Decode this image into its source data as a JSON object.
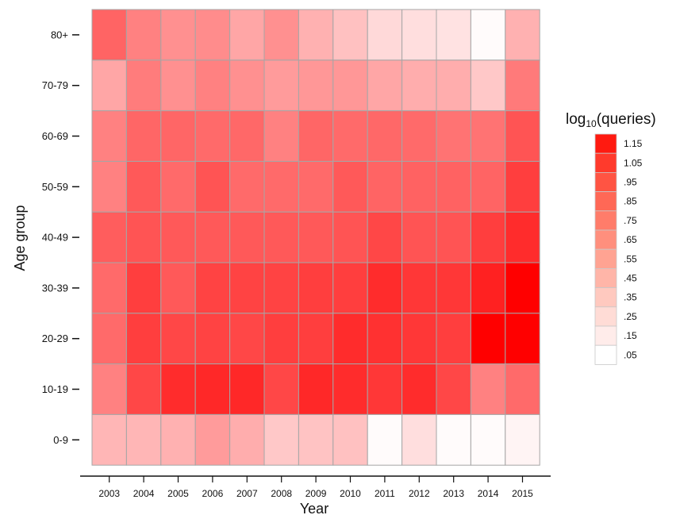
{
  "chart_data": {
    "type": "heatmap",
    "xlabel": "Year",
    "ylabel": "Age group",
    "x": [
      "2003",
      "2004",
      "2005",
      "2006",
      "2007",
      "2008",
      "2009",
      "2010",
      "2011",
      "2012",
      "2013",
      "2014",
      "2015"
    ],
    "y": [
      "80+",
      "70-79",
      "60-69",
      "50-59",
      "40-49",
      "30-39",
      "20-29",
      "10-19",
      "0-9"
    ],
    "values": [
      [
        0.75,
        0.62,
        0.55,
        0.57,
        0.45,
        0.55,
        0.4,
        0.33,
        0.22,
        0.2,
        0.18,
        0.07,
        0.4
      ],
      [
        0.45,
        0.64,
        0.55,
        0.62,
        0.55,
        0.5,
        0.52,
        0.52,
        0.45,
        0.42,
        0.42,
        0.3,
        0.65
      ],
      [
        0.62,
        0.74,
        0.74,
        0.72,
        0.73,
        0.62,
        0.74,
        0.72,
        0.73,
        0.72,
        0.68,
        0.68,
        0.82
      ],
      [
        0.62,
        0.8,
        0.72,
        0.82,
        0.72,
        0.72,
        0.72,
        0.8,
        0.75,
        0.76,
        0.76,
        0.75,
        0.92
      ],
      [
        0.78,
        0.82,
        0.8,
        0.8,
        0.8,
        0.8,
        0.8,
        0.82,
        0.88,
        0.82,
        0.82,
        0.92,
        1.0
      ],
      [
        0.72,
        0.92,
        0.8,
        0.9,
        0.9,
        0.9,
        0.92,
        0.92,
        1.0,
        0.95,
        0.95,
        1.05,
        1.2
      ],
      [
        0.72,
        0.92,
        0.88,
        0.9,
        0.88,
        0.92,
        0.92,
        1.0,
        0.98,
        0.95,
        0.92,
        1.2,
        1.2
      ],
      [
        0.62,
        0.88,
        1.0,
        1.02,
        1.02,
        0.88,
        1.02,
        1.0,
        0.95,
        1.0,
        0.88,
        0.62,
        0.72
      ],
      [
        0.38,
        0.38,
        0.4,
        0.5,
        0.42,
        0.3,
        0.32,
        0.33,
        0.07,
        0.2,
        0.07,
        0.07,
        0.1
      ]
    ],
    "legend": {
      "title_prefix": "log",
      "title_sub": "10",
      "title_suffix": "(queries)",
      "placement": "right",
      "items": [
        {
          "label": "1.15",
          "value": 1.15,
          "color": "#ff1a10"
        },
        {
          "label": "1.05",
          "value": 1.05,
          "color": "#ff3a2c"
        },
        {
          "label": ".95",
          "value": 0.95,
          "color": "#ff5443"
        },
        {
          "label": ".85",
          "value": 0.85,
          "color": "#ff6856"
        },
        {
          "label": ".75",
          "value": 0.75,
          "color": "#ff7c6a"
        },
        {
          "label": ".65",
          "value": 0.65,
          "color": "#ff8f7d"
        },
        {
          "label": ".55",
          "value": 0.55,
          "color": "#ffa392"
        },
        {
          "label": ".45",
          "value": 0.45,
          "color": "#ffb5a8"
        },
        {
          "label": ".35",
          "value": 0.35,
          "color": "#ffc9bf"
        },
        {
          "label": ".25",
          "value": 0.25,
          "color": "#ffdcd6"
        },
        {
          "label": ".15",
          "value": 0.15,
          "color": "#ffecea"
        },
        {
          "label": ".05",
          "value": 0.05,
          "color": "#ffffff"
        }
      ]
    },
    "colors": {
      "high": "#ff0000",
      "low": "#ffffff",
      "cell_border": "#a6a6a6",
      "axis": "#111111"
    }
  }
}
